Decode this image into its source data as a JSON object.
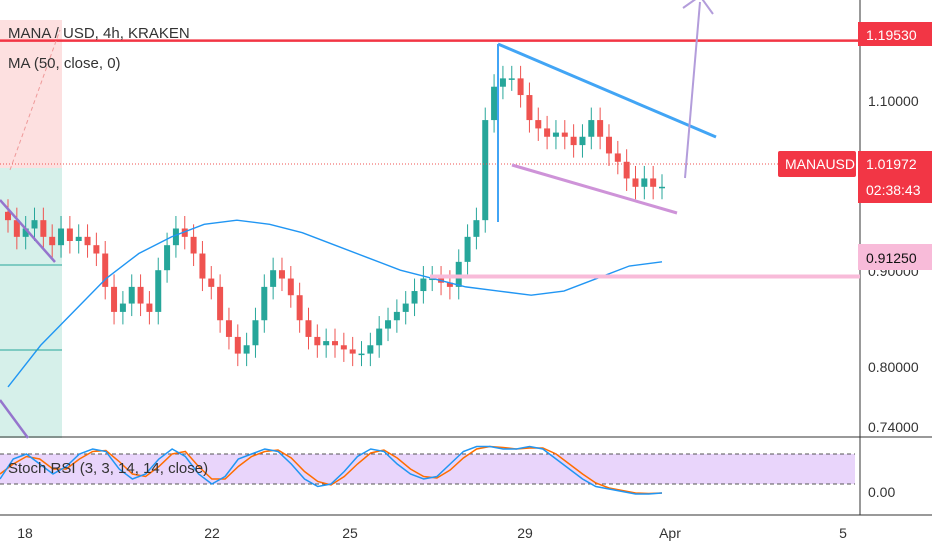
{
  "header": {
    "symbol_line": "MANA / USD, 4h, KRAKEN",
    "ma_line": "MA (50, close, 0)",
    "stoch_line": "Stoch RSI (3, 3, 14, 14, close)"
  },
  "colors": {
    "up": "#26a69a",
    "down": "#ef5350",
    "ma": "#2196f3",
    "resistance_line": "#f23645",
    "support_line": "#f8bbd9",
    "trend_upper": "#42a5f5",
    "trend_lower": "#ce93d8",
    "arrow": "#b39ddb",
    "stoch_k": "#2196f3",
    "stoch_d": "#ff6d00",
    "stoch_band": "#e1bee7"
  },
  "price_axis": {
    "ticks": [
      "1.10000",
      "0.80000",
      "0.74000",
      "0.00"
    ],
    "partially_hidden_tick": "0.90000"
  },
  "tags": {
    "resistance": "1.19530",
    "support": "0.91250",
    "symbol": "MANAUSD",
    "last_price": "1.01972",
    "countdown": "02:38:43"
  },
  "time_axis": {
    "labels": [
      "18",
      "22",
      "25",
      "29",
      "Apr",
      "5"
    ]
  },
  "chart_data": {
    "type": "candlestick",
    "title": "MANA / USD, 4h, KRAKEN",
    "ylim": [
      0.72,
      1.22
    ],
    "x_labels": [
      "18",
      "22",
      "25",
      "29",
      "Apr",
      "5"
    ],
    "candles_close": [
      0.98,
      0.96,
      0.97,
      0.98,
      0.96,
      0.95,
      0.97,
      0.955,
      0.96,
      0.95,
      0.94,
      0.9,
      0.87,
      0.88,
      0.9,
      0.88,
      0.87,
      0.92,
      0.95,
      0.97,
      0.96,
      0.94,
      0.91,
      0.9,
      0.86,
      0.84,
      0.82,
      0.83,
      0.86,
      0.9,
      0.92,
      0.91,
      0.89,
      0.86,
      0.84,
      0.83,
      0.835,
      0.83,
      0.825,
      0.82,
      0.82,
      0.83,
      0.85,
      0.86,
      0.87,
      0.88,
      0.895,
      0.91,
      0.91,
      0.905,
      0.9,
      0.93,
      0.96,
      0.98,
      1.1,
      1.14,
      1.15,
      1.15,
      1.13,
      1.1,
      1.09,
      1.08,
      1.085,
      1.08,
      1.07,
      1.08,
      1.1,
      1.08,
      1.06,
      1.05,
      1.03,
      1.02,
      1.03,
      1.02,
      1.02
    ],
    "moving_average": {
      "name": "MA (50, close, 0)",
      "values": [
        0.78,
        0.83,
        0.87,
        0.91,
        0.94,
        0.96,
        0.975,
        0.98,
        0.975,
        0.965,
        0.95,
        0.935,
        0.92,
        0.91,
        0.9,
        0.895,
        0.89,
        0.895,
        0.91,
        0.925,
        0.93
      ]
    },
    "levels": [
      {
        "label": "1.19530",
        "value": 1.1953
      },
      {
        "label": "0.91250",
        "value": 0.9125
      }
    ],
    "stoch_rsi": {
      "title": "Stoch RSI (3, 3, 14, 14, close)",
      "ylim": [
        0,
        100
      ],
      "bands": [
        20,
        80
      ],
      "k": [
        30,
        70,
        80,
        60,
        40,
        55,
        80,
        90,
        85,
        50,
        30,
        40,
        70,
        90,
        75,
        40,
        20,
        35,
        70,
        80,
        90,
        85,
        60,
        30,
        15,
        20,
        45,
        75,
        90,
        85,
        60,
        40,
        30,
        35,
        60,
        85,
        95,
        95,
        90,
        90,
        95,
        90,
        70,
        50,
        30,
        15,
        10,
        5,
        0,
        0,
        2
      ],
      "d": [
        40,
        60,
        75,
        70,
        50,
        50,
        70,
        85,
        87,
        65,
        40,
        35,
        55,
        80,
        85,
        55,
        30,
        30,
        55,
        75,
        85,
        88,
        72,
        45,
        25,
        18,
        35,
        60,
        82,
        88,
        72,
        50,
        35,
        32,
        48,
        72,
        90,
        95,
        93,
        90,
        92,
        92,
        80,
        60,
        40,
        22,
        12,
        7,
        2,
        1,
        2
      ]
    }
  }
}
